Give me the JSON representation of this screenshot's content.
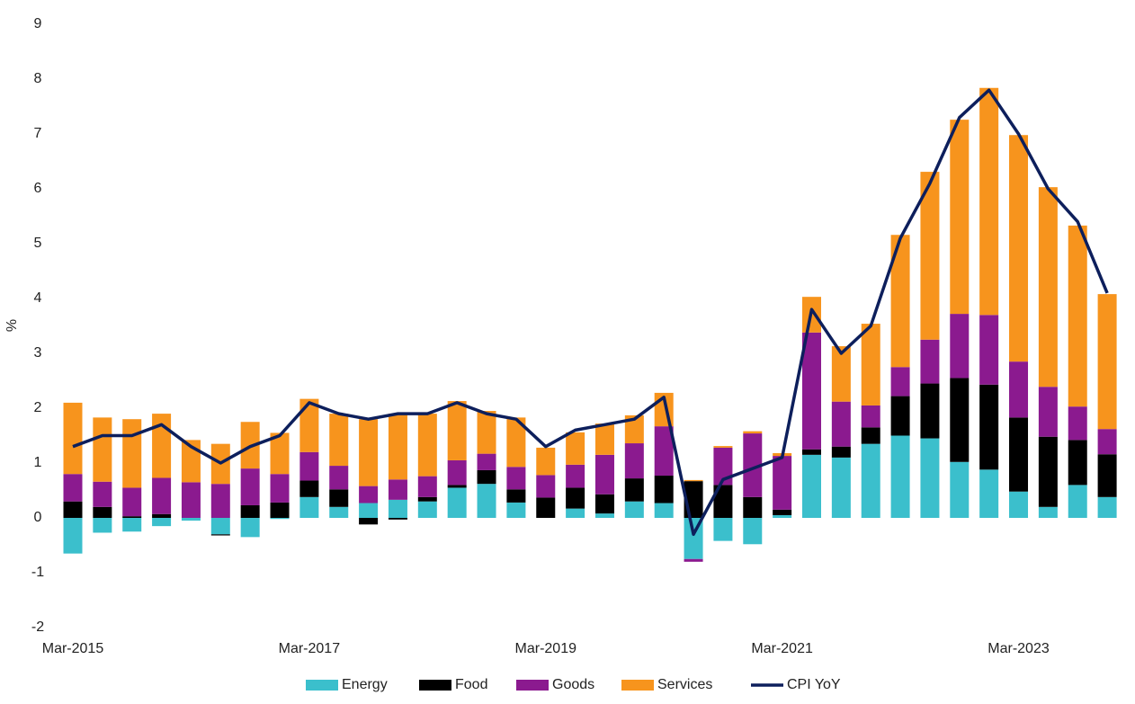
{
  "chart_data": {
    "type": "bar",
    "stacked": true,
    "ylabel": "%",
    "categories": [
      "Mar-2015",
      null,
      null,
      null,
      null,
      null,
      null,
      null,
      "Mar-2017",
      null,
      null,
      null,
      null,
      null,
      null,
      null,
      "Mar-2019",
      null,
      null,
      null,
      null,
      null,
      null,
      null,
      "Mar-2021",
      null,
      null,
      null,
      null,
      null,
      null,
      null,
      "Mar-2023",
      null,
      null,
      null
    ],
    "series": [
      {
        "name": "Energy",
        "color": "#3bbfcc",
        "values": [
          -0.65,
          -0.27,
          -0.25,
          -0.15,
          -0.05,
          -0.3,
          -0.35,
          -0.02,
          0.38,
          0.2,
          0.27,
          0.33,
          0.3,
          0.55,
          0.62,
          0.28,
          0,
          0.17,
          0.08,
          0.3,
          0.27,
          -0.75,
          -0.42,
          -0.48,
          0.05,
          1.15,
          1.1,
          1.35,
          1.5,
          1.45,
          1.02,
          0.88,
          0.48,
          0.2,
          0.6,
          0.38
        ]
      },
      {
        "name": "Food",
        "color": "#000000",
        "values": [
          0.3,
          0.2,
          0.03,
          0.07,
          0,
          -0.02,
          0.23,
          0.28,
          0.3,
          0.32,
          -0.12,
          -0.03,
          0.08,
          0.05,
          0.25,
          0.24,
          0.37,
          0.38,
          0.35,
          0.42,
          0.5,
          0.67,
          0.6,
          0.38,
          0.1,
          0.1,
          0.2,
          0.3,
          0.72,
          1.0,
          1.53,
          1.55,
          1.35,
          1.28,
          0.82,
          0.78
        ]
      },
      {
        "name": "Goods",
        "color": "#8b1a8f",
        "values": [
          0.5,
          0.46,
          0.52,
          0.66,
          0.65,
          0.62,
          0.67,
          0.52,
          0.52,
          0.43,
          0.31,
          0.37,
          0.38,
          0.45,
          0.3,
          0.41,
          0.41,
          0.42,
          0.72,
          0.64,
          0.9,
          -0.05,
          0.68,
          1.16,
          0.98,
          2.13,
          0.82,
          0.4,
          0.53,
          0.8,
          1.17,
          1.27,
          1.02,
          0.91,
          0.61,
          0.46
        ]
      },
      {
        "name": "Services",
        "color": "#f7941d",
        "values": [
          1.3,
          1.17,
          1.25,
          1.17,
          0.77,
          0.73,
          0.85,
          0.75,
          0.97,
          0.95,
          1.22,
          1.2,
          1.14,
          1.08,
          0.78,
          0.9,
          0.5,
          0.59,
          0.57,
          0.51,
          0.61,
          0.02,
          0.03,
          0.04,
          0.05,
          0.65,
          1.01,
          1.49,
          2.41,
          3.06,
          3.54,
          4.14,
          4.13,
          3.64,
          3.3,
          2.46
        ]
      },
      {
        "name": "CPI YoY",
        "type": "line",
        "color": "#0d1f5c",
        "values": [
          1.3,
          1.5,
          1.5,
          1.7,
          1.3,
          1.0,
          1.3,
          1.5,
          2.1,
          1.9,
          1.8,
          1.9,
          1.9,
          2.1,
          1.9,
          1.8,
          1.3,
          1.6,
          1.7,
          1.8,
          2.2,
          -0.3,
          0.7,
          0.9,
          1.1,
          3.8,
          3.0,
          3.5,
          5.1,
          6.1,
          7.3,
          7.8,
          7.0,
          6.0,
          5.4,
          4.1
        ]
      }
    ],
    "ylim": [
      -2,
      9
    ],
    "yticks": [
      -2,
      -1,
      0,
      1,
      2,
      3,
      4,
      5,
      6,
      7,
      8,
      9
    ],
    "grid": false,
    "legend": "bottom"
  }
}
